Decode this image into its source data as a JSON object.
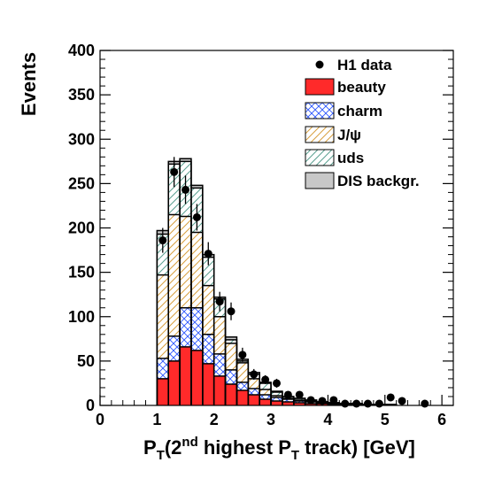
{
  "chart_data": {
    "type": "histogram",
    "xlabel": {
      "main": "P",
      "main_sub": "T",
      "open": "(2",
      "sup": "nd",
      "mid": " highest P",
      "mid_sub": "T",
      "tail": " track) [GeV]"
    },
    "ylabel": "Events",
    "xlim": [
      0,
      6.2
    ],
    "ylim": [
      0,
      400
    ],
    "x_ticks": [
      "0",
      "1",
      "2",
      "3",
      "4",
      "5",
      "6"
    ],
    "y_ticks": [
      "0",
      "50",
      "100",
      "150",
      "200",
      "250",
      "300",
      "350",
      "400"
    ],
    "bin_edges": [
      1.0,
      1.2,
      1.4,
      1.6,
      1.8,
      2.0,
      2.2,
      2.4,
      2.6,
      2.8,
      3.0,
      3.2,
      3.4,
      3.6,
      3.8,
      4.0,
      4.2,
      4.4,
      4.6,
      4.8,
      5.0,
      5.2,
      5.4,
      5.6,
      5.8,
      6.0
    ],
    "stack_tops": {
      "beauty": [
        30,
        50,
        66,
        62,
        47,
        33,
        24,
        17,
        12,
        7,
        5,
        4,
        3,
        2,
        2,
        1,
        1,
        1,
        1,
        0,
        0,
        0,
        0,
        0,
        0
      ],
      "charm": [
        53,
        78,
        110,
        110,
        80,
        58,
        40,
        26,
        19,
        12,
        9,
        7,
        5,
        4,
        3,
        2,
        2,
        1,
        1,
        1,
        0,
        0,
        0,
        0,
        0
      ],
      "jpsi": [
        147,
        215,
        213,
        195,
        135,
        100,
        70,
        48,
        30,
        18,
        11,
        8,
        6,
        5,
        4,
        3,
        2,
        2,
        1,
        1,
        1,
        0,
        0,
        0,
        0
      ],
      "uds": [
        193,
        272,
        275,
        245,
        167,
        120,
        74,
        50,
        35,
        25,
        15,
        10,
        8,
        6,
        4,
        3,
        2,
        2,
        1,
        1,
        1,
        0,
        0,
        0,
        0
      ],
      "dis": [
        197,
        275,
        278,
        248,
        170,
        122,
        77,
        52,
        37,
        26,
        16,
        10,
        8,
        6,
        4,
        3,
        2,
        2,
        1,
        1,
        1,
        0,
        0,
        0,
        0
      ]
    },
    "data_points": [
      {
        "x": 1.1,
        "y": 186,
        "err": 14
      },
      {
        "x": 1.3,
        "y": 263,
        "err": 17
      },
      {
        "x": 1.5,
        "y": 243,
        "err": 16
      },
      {
        "x": 1.7,
        "y": 212,
        "err": 15
      },
      {
        "x": 1.9,
        "y": 171,
        "err": 13
      },
      {
        "x": 2.1,
        "y": 117,
        "err": 11
      },
      {
        "x": 2.3,
        "y": 106,
        "err": 10
      },
      {
        "x": 2.5,
        "y": 57,
        "err": 8
      },
      {
        "x": 2.7,
        "y": 35,
        "err": 6
      },
      {
        "x": 2.9,
        "y": 29,
        "err": 5
      },
      {
        "x": 3.1,
        "y": 25,
        "err": 5
      },
      {
        "x": 3.3,
        "y": 12,
        "err": 3
      },
      {
        "x": 3.5,
        "y": 12,
        "err": 3
      },
      {
        "x": 3.7,
        "y": 6,
        "err": 2
      },
      {
        "x": 3.9,
        "y": 5,
        "err": 2
      },
      {
        "x": 4.1,
        "y": 6,
        "err": 2
      },
      {
        "x": 4.3,
        "y": 2,
        "err": 1
      },
      {
        "x": 4.5,
        "y": 2,
        "err": 1
      },
      {
        "x": 4.7,
        "y": 2,
        "err": 1
      },
      {
        "x": 4.9,
        "y": 2,
        "err": 1
      },
      {
        "x": 5.1,
        "y": 9,
        "err": 3
      },
      {
        "x": 5.3,
        "y": 5,
        "err": 2
      },
      {
        "x": 5.7,
        "y": 2,
        "err": 1
      }
    ],
    "legend": {
      "placement": "top-right",
      "entries": [
        {
          "key": "data",
          "label": "H1 data"
        },
        {
          "key": "beauty",
          "label": "beauty"
        },
        {
          "key": "charm",
          "label": "charm"
        },
        {
          "key": "jpsi",
          "label": "J/ψ"
        },
        {
          "key": "uds",
          "label": "uds"
        },
        {
          "key": "dis",
          "label": "DIS backgr."
        }
      ]
    },
    "colors": {
      "beauty": "#ff2a2a",
      "charm_pattern": "#2a55ff",
      "jpsi_pattern": "#d8a040",
      "uds_pattern": "#5aa090",
      "dis": "#c8c8c8",
      "outline": "#000000"
    }
  }
}
